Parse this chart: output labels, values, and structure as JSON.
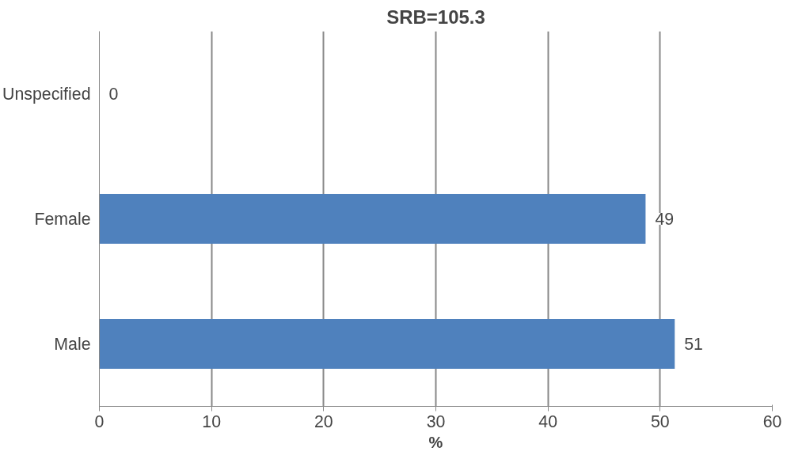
{
  "chart_data": {
    "type": "bar",
    "orientation": "horizontal",
    "title": "SRB=105.3",
    "xlabel": "%",
    "categories": [
      "Unspecified",
      "Female",
      "Male"
    ],
    "values": [
      0,
      48.7,
      51.3
    ],
    "value_labels": [
      "0",
      "49",
      "51"
    ],
    "color": "#4f81bd",
    "xlim": [
      0,
      60
    ],
    "xticks": [
      0,
      10,
      20,
      30,
      40,
      50,
      60
    ],
    "grid": "x"
  }
}
